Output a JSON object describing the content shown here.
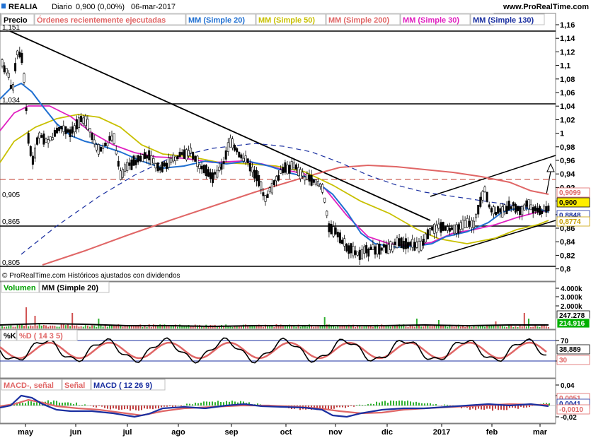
{
  "header": {
    "symbol": "REALIA",
    "period": "Diario",
    "quote": "0,900 (0,00%)",
    "date": "06-mar-2017",
    "site": "www.ProRealTime.com"
  },
  "price_panel": {
    "legend": [
      {
        "label": "Precio",
        "color": "#000000"
      },
      {
        "label": "Órdenes recientemente ejecutadas",
        "color": "#e06666"
      },
      {
        "label": "MM (Simple 20)",
        "color": "#1f6fd1"
      },
      {
        "label": "MM (Simple 50)",
        "color": "#c8c000"
      },
      {
        "label": "MM (Simple 200)",
        "color": "#e06666"
      },
      {
        "label": "MM (Simple 30)",
        "color": "#e020c0"
      },
      {
        "label": "MM (Simple 130)",
        "color": "#1a2fa0"
      }
    ],
    "level_labels": [
      "1,151",
      "1,034",
      "0,905",
      "0,865",
      "0,805"
    ],
    "y_ticks": [
      "1,16",
      "1,14",
      "1,12",
      "1,1",
      "1,08",
      "1,06",
      "1,04",
      "1,02",
      "1",
      "0,98",
      "0,96",
      "0,94",
      "0,92",
      "0,9",
      "0,88",
      "0,86",
      "0,84",
      "0,82",
      "0,8"
    ],
    "value_tags": [
      {
        "text": "0,9099",
        "color": "#e06666",
        "bg": "#ffffff"
      },
      {
        "text": "0,900",
        "color": "#000000",
        "bg": "#ffee00"
      },
      {
        "text": "0,8848",
        "color": "#1a2fa0",
        "bg": "#ffffff"
      },
      {
        "text": "0,8774",
        "color": "#c8a000",
        "bg": "#ffffff"
      }
    ],
    "footer": "© ProRealTime.com  Históricos ajustados con dividendos"
  },
  "volume_panel": {
    "legend": [
      {
        "label": "Volumen",
        "color": "#00a000"
      },
      {
        "label": "MM (Simple 20)",
        "color": "#000000"
      }
    ],
    "y_ticks": [
      "4.000k",
      "3.000k",
      "2.000k"
    ],
    "value_tags": [
      {
        "text": "247.278",
        "color": "#000000",
        "bg": "#ffffff"
      },
      {
        "text": "214.916",
        "color": "#ffffff",
        "bg": "#00b000"
      }
    ]
  },
  "stoch_panel": {
    "legend": [
      {
        "label": "%K",
        "color": "#000000"
      },
      {
        "label": "%D ( 14 3 5)",
        "color": "#e06666"
      }
    ],
    "y_ticks": [
      "70",
      "30"
    ],
    "value_tags": [
      {
        "text": "38,889",
        "color": "#000000",
        "bg": "#ffffff"
      },
      {
        "text": "30",
        "color": "#e06666",
        "bg": "#ffffff"
      }
    ]
  },
  "macd_panel": {
    "legend": [
      {
        "label": "MACD-, señal",
        "color": "#e06666"
      },
      {
        "label": "Señal",
        "color": "#e06666"
      },
      {
        "label": "MACD ( 12 26 9)",
        "color": "#1a2fa0"
      }
    ],
    "y_ticks": [
      "0,04",
      "0,02",
      "-0,02"
    ],
    "value_tags": [
      {
        "text": "0,0051",
        "color": "#e06666",
        "bg": "#ffffff"
      },
      {
        "text": "0,0041",
        "color": "#1a2fa0",
        "bg": "#ffffff"
      },
      {
        "text": "-0,0010",
        "color": "#e06666",
        "bg": "#ffffff"
      }
    ]
  },
  "x_axis": {
    "labels": [
      "may",
      "jun",
      "jul",
      "ago",
      "sep",
      "oct",
      "nov",
      "dic",
      "2017",
      "feb",
      "mar"
    ]
  },
  "chart_data": {
    "type": "candlestick",
    "title": "REALIA Diario",
    "ylabel": "Precio",
    "ylim": [
      0.79,
      1.17
    ],
    "grid": false,
    "x": [
      "2016-05",
      "2016-06",
      "2016-07",
      "2016-08",
      "2016-09",
      "2016-10",
      "2016-11",
      "2016-12",
      "2017-01",
      "2017-02",
      "2017-03-06"
    ],
    "series": [
      {
        "name": "Precio",
        "values": [
          1.08,
          1.0,
          0.95,
          0.96,
          0.95,
          0.93,
          0.83,
          0.83,
          0.86,
          0.9,
          0.9
        ]
      },
      {
        "name": "MM (Simple 20)",
        "values": [
          1.05,
          1.0,
          0.95,
          0.94,
          0.95,
          0.92,
          0.85,
          0.84,
          0.86,
          0.88,
          0.885
        ]
      },
      {
        "name": "MM (Simple 50)",
        "values": [
          0.97,
          1.02,
          0.99,
          0.96,
          0.95,
          0.93,
          0.9,
          0.86,
          0.86,
          0.87,
          0.877
        ]
      },
      {
        "name": "MM (Simple 30)",
        "values": [
          1.03,
          1.01,
          0.96,
          0.95,
          0.95,
          0.93,
          0.86,
          0.84,
          0.85,
          0.875,
          0.88
        ]
      },
      {
        "name": "MM (Simple 130)",
        "values": [
          0.82,
          0.87,
          0.92,
          0.95,
          0.97,
          0.96,
          0.94,
          0.915,
          0.9,
          0.89,
          0.885
        ]
      },
      {
        "name": "MM (Simple 200)",
        "values": [
          0.79,
          0.82,
          0.86,
          0.89,
          0.91,
          0.935,
          0.94,
          0.935,
          0.925,
          0.915,
          0.91
        ]
      }
    ],
    "horizontal_levels": [
      1.151,
      1.034,
      0.905,
      0.865,
      0.805
    ],
    "last": {
      "close": 0.9,
      "mm200": 0.9099,
      "mm130": 0.8848,
      "mm50": 0.8774
    }
  }
}
